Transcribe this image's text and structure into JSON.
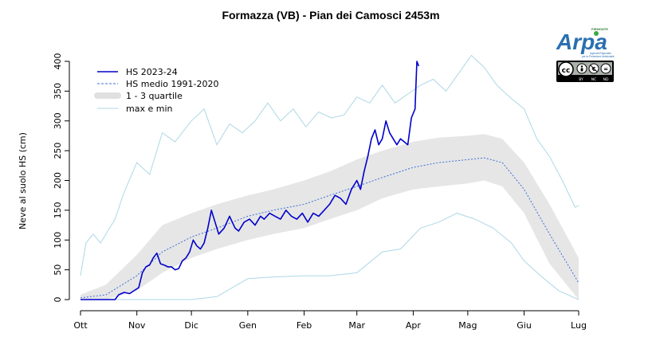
{
  "chart_data": {
    "type": "line",
    "title": "Formazza (VB) - Pian dei Camosci 2453m",
    "ylabel": "Neve al suolo HS (cm)",
    "xlabel": "",
    "ylim": [
      0,
      400
    ],
    "yticks": [
      0,
      50,
      100,
      150,
      200,
      250,
      300,
      350,
      400
    ],
    "xlim": [
      "2023-10-01",
      "2024-07-01"
    ],
    "months": [
      "Ott",
      "Nov",
      "Dic",
      "Gen",
      "Feb",
      "Mar",
      "Apr",
      "Mag",
      "Giu",
      "Lug"
    ],
    "legend_position": "top-left",
    "grid": false,
    "colors": {
      "hs": "#0000cc",
      "medio": "#3c6fd6",
      "quartile": "#e6e6e6",
      "maxmin": "#add8e6"
    },
    "legend": [
      {
        "label": "HS 2023-24",
        "style": "hs"
      },
      {
        "label": "HS medio 1991-2020",
        "style": "medio"
      },
      {
        "label": "1 - 3 quartile",
        "style": "quartile"
      },
      {
        "label": "max e min",
        "style": "maxmin"
      }
    ],
    "series": [
      {
        "name": "HS 2023-24",
        "x": [
          "2023-10-01",
          "2023-10-20",
          "2023-10-22",
          "2023-10-25",
          "2023-10-28",
          "2023-10-31",
          "2023-11-02",
          "2023-11-04",
          "2023-11-06",
          "2023-11-08",
          "2023-11-10",
          "2023-11-12",
          "2023-11-14",
          "2023-11-16",
          "2023-11-18",
          "2023-11-20",
          "2023-11-22",
          "2023-11-24",
          "2023-11-26",
          "2023-11-28",
          "2023-11-30",
          "2023-12-02",
          "2023-12-04",
          "2023-12-06",
          "2023-12-08",
          "2023-12-10",
          "2023-12-12",
          "2023-12-14",
          "2023-12-16",
          "2023-12-19",
          "2023-12-22",
          "2023-12-25",
          "2023-12-27",
          "2023-12-30",
          "2024-01-02",
          "2024-01-05",
          "2024-01-08",
          "2024-01-10",
          "2024-01-13",
          "2024-01-16",
          "2024-01-19",
          "2024-01-22",
          "2024-01-25",
          "2024-01-28",
          "2024-01-31",
          "2024-02-03",
          "2024-02-06",
          "2024-02-09",
          "2024-02-12",
          "2024-02-15",
          "2024-02-18",
          "2024-02-21",
          "2024-02-24",
          "2024-02-27",
          "2024-03-01",
          "2024-03-03",
          "2024-03-05",
          "2024-03-07",
          "2024-03-09",
          "2024-03-11",
          "2024-03-13",
          "2024-03-15",
          "2024-03-17",
          "2024-03-19",
          "2024-03-21",
          "2024-03-23",
          "2024-03-25",
          "2024-03-27",
          "2024-03-29",
          "2024-03-31",
          "2024-04-02",
          "2024-04-03",
          "2024-04-04"
        ],
        "values": [
          0,
          0,
          8,
          12,
          10,
          16,
          20,
          45,
          55,
          58,
          70,
          78,
          60,
          58,
          55,
          55,
          50,
          52,
          65,
          70,
          80,
          100,
          90,
          85,
          95,
          120,
          150,
          130,
          110,
          120,
          140,
          120,
          115,
          130,
          135,
          125,
          140,
          135,
          145,
          140,
          135,
          150,
          140,
          135,
          145,
          130,
          145,
          140,
          150,
          160,
          175,
          170,
          160,
          185,
          200,
          185,
          215,
          240,
          270,
          285,
          260,
          270,
          300,
          280,
          270,
          260,
          270,
          265,
          260,
          305,
          320,
          400,
          392
        ]
      },
      {
        "name": "HS medio 1991-2020",
        "x": [
          "2023-10-01",
          "2023-10-15",
          "2023-11-01",
          "2023-11-15",
          "2023-12-01",
          "2023-12-15",
          "2024-01-01",
          "2024-01-15",
          "2024-02-01",
          "2024-02-15",
          "2024-03-01",
          "2024-03-15",
          "2024-04-01",
          "2024-04-15",
          "2024-05-01",
          "2024-05-10",
          "2024-05-20",
          "2024-06-01",
          "2024-06-15",
          "2024-07-01"
        ],
        "values": [
          3,
          8,
          40,
          80,
          105,
          120,
          140,
          150,
          160,
          175,
          190,
          205,
          222,
          230,
          235,
          238,
          230,
          185,
          110,
          28
        ]
      },
      {
        "name": "1 - 3 quartile",
        "x": [
          "2023-10-01",
          "2023-10-15",
          "2023-11-01",
          "2023-11-15",
          "2023-12-01",
          "2023-12-15",
          "2024-01-01",
          "2024-01-15",
          "2024-02-01",
          "2024-02-15",
          "2024-03-01",
          "2024-03-15",
          "2024-04-01",
          "2024-04-15",
          "2024-05-01",
          "2024-05-10",
          "2024-05-20",
          "2024-06-01",
          "2024-06-15",
          "2024-07-01"
        ],
        "lower": [
          0,
          0,
          15,
          45,
          70,
          85,
          100,
          110,
          120,
          135,
          150,
          170,
          185,
          190,
          195,
          200,
          190,
          145,
          60,
          0
        ],
        "upper": [
          8,
          25,
          75,
          125,
          145,
          160,
          175,
          185,
          200,
          215,
          235,
          250,
          265,
          272,
          275,
          278,
          270,
          230,
          160,
          70
        ]
      },
      {
        "name": "max",
        "x": [
          "2023-10-01",
          "2023-10-04",
          "2023-10-08",
          "2023-10-12",
          "2023-10-16",
          "2023-10-20",
          "2023-10-25",
          "2023-11-01",
          "2023-11-08",
          "2023-11-15",
          "2023-11-22",
          "2023-12-01",
          "2023-12-08",
          "2023-12-15",
          "2023-12-22",
          "2023-12-29",
          "2024-01-05",
          "2024-01-12",
          "2024-01-19",
          "2024-01-26",
          "2024-02-02",
          "2024-02-09",
          "2024-02-16",
          "2024-02-23",
          "2024-03-01",
          "2024-03-08",
          "2024-03-15",
          "2024-03-22",
          "2024-03-29",
          "2024-04-05",
          "2024-04-12",
          "2024-04-19",
          "2024-04-26",
          "2024-05-03",
          "2024-05-10",
          "2024-05-17",
          "2024-05-24",
          "2024-06-01",
          "2024-06-08",
          "2024-06-15",
          "2024-06-22",
          "2024-06-29",
          "2024-07-01"
        ],
        "values": [
          40,
          95,
          110,
          95,
          115,
          135,
          180,
          230,
          210,
          280,
          265,
          300,
          320,
          260,
          295,
          280,
          300,
          330,
          300,
          320,
          290,
          315,
          305,
          310,
          340,
          330,
          360,
          330,
          345,
          360,
          370,
          350,
          380,
          410,
          390,
          360,
          340,
          320,
          270,
          240,
          200,
          155,
          158
        ]
      },
      {
        "name": "min",
        "x": [
          "2023-10-01",
          "2023-11-01",
          "2023-11-20",
          "2023-12-01",
          "2023-12-15",
          "2024-01-01",
          "2024-01-15",
          "2024-02-01",
          "2024-02-15",
          "2024-03-01",
          "2024-03-15",
          "2024-03-25",
          "2024-04-05",
          "2024-04-15",
          "2024-04-25",
          "2024-05-05",
          "2024-05-15",
          "2024-05-25",
          "2024-06-01",
          "2024-06-10",
          "2024-06-20",
          "2024-07-01"
        ],
        "values": [
          0,
          0,
          0,
          0,
          5,
          35,
          38,
          40,
          40,
          45,
          80,
          85,
          120,
          130,
          145,
          135,
          120,
          95,
          65,
          40,
          15,
          0
        ]
      }
    ]
  },
  "logo": {
    "brand": "Arpa",
    "subtitle": "Agenzia Regionale per la Protezione Ambientale",
    "region": "PIEMONTE",
    "license_icons": [
      "cc-icon",
      "by-icon",
      "nc-icon",
      "nd-icon"
    ],
    "license_labels": [
      "BY",
      "NC",
      "ND"
    ]
  }
}
